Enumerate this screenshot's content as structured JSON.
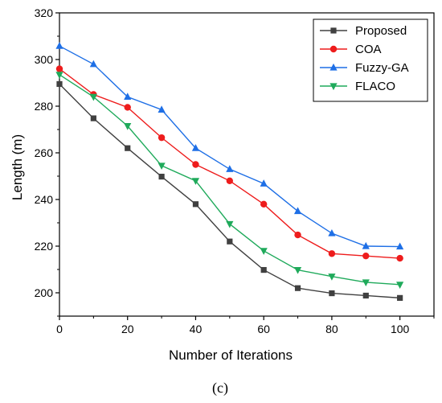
{
  "chart_data": {
    "type": "line",
    "x": [
      0,
      10,
      20,
      30,
      40,
      50,
      60,
      70,
      80,
      90,
      100
    ],
    "series": [
      {
        "name": "Proposed",
        "color": "#404040",
        "marker": "square",
        "values": [
          289.5,
          274.8,
          262.0,
          249.8,
          238.0,
          222.0,
          209.8,
          202.0,
          199.8,
          198.8,
          197.8
        ]
      },
      {
        "name": "COA",
        "color": "#ee1c1c",
        "marker": "circle",
        "values": [
          296.0,
          285.0,
          279.5,
          266.5,
          255.0,
          248.0,
          238.0,
          224.8,
          216.8,
          215.8,
          214.8
        ]
      },
      {
        "name": "Fuzzy-GA",
        "color": "#1e6fe6",
        "marker": "triangle-up",
        "values": [
          305.8,
          298.0,
          284.0,
          278.5,
          262.0,
          253.0,
          246.8,
          235.0,
          225.5,
          220.0,
          219.8
        ]
      },
      {
        "name": "FLACO",
        "color": "#1faa5b",
        "marker": "triangle-down",
        "values": [
          293.5,
          284.0,
          271.5,
          254.5,
          248.0,
          229.5,
          218.0,
          209.8,
          207.0,
          204.5,
          203.5
        ]
      }
    ],
    "xlabel": "Number of Iterations",
    "ylabel": "Length (m)",
    "xlim": [
      0,
      110
    ],
    "ylim": [
      190,
      320
    ],
    "xticks": [
      0,
      20,
      40,
      60,
      80,
      100
    ],
    "yticks": [
      200,
      220,
      240,
      260,
      280,
      300,
      320
    ],
    "grid": false,
    "legend_position": "top-right"
  },
  "caption": "(c)"
}
